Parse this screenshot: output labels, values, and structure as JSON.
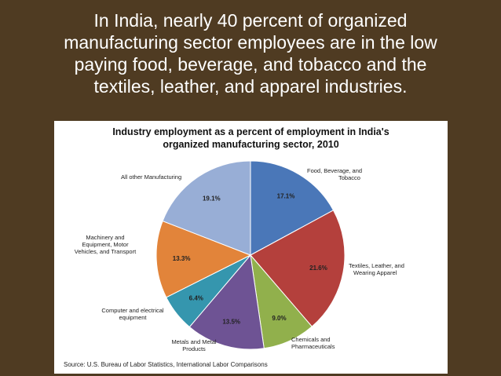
{
  "slide": {
    "title_lines": [
      "In India, nearly 40 percent of organized",
      "manufacturing sector employees are in the low",
      "paying food, beverage, and tobacco and the",
      "textiles, leather, and apparel industries."
    ]
  },
  "chart_data": {
    "type": "pie",
    "title_lines": [
      "Industry employment as a percent of employment in India's",
      "organized manufacturing sector, 2010"
    ],
    "source": "Source: U.S. Bureau of Labor Statistics, International Labor Comparisons",
    "slices": [
      {
        "category_lines": [
          "Food, Beverage, and",
          "Tobacco"
        ],
        "value": 17.1,
        "label": "17.1%",
        "color": "#4a77b8"
      },
      {
        "category_lines": [
          "Textiles, Leather, and",
          "Wearing Apparel"
        ],
        "value": 21.6,
        "label": "21.6%",
        "color": "#b4403c"
      },
      {
        "category_lines": [
          "Chemicals and",
          "Pharmaceuticals"
        ],
        "value": 9.0,
        "label": "9.0%",
        "color": "#91b04c"
      },
      {
        "category_lines": [
          "Metals and Metal",
          "Products"
        ],
        "value": 13.5,
        "label": "13.5%",
        "color": "#6e5394"
      },
      {
        "category_lines": [
          "Computer and electrical",
          "equipment"
        ],
        "value": 6.4,
        "label": "6.4%",
        "color": "#3596ae"
      },
      {
        "category_lines": [
          "Machinery and",
          "Equipment, Motor",
          "Vehicles, and Transport"
        ],
        "value": 13.3,
        "label": "13.3%",
        "color": "#e2843a"
      },
      {
        "category_lines": [
          "All other Manufacturing"
        ],
        "value": 19.1,
        "label": "19.1%",
        "color": "#98aed6"
      }
    ]
  }
}
